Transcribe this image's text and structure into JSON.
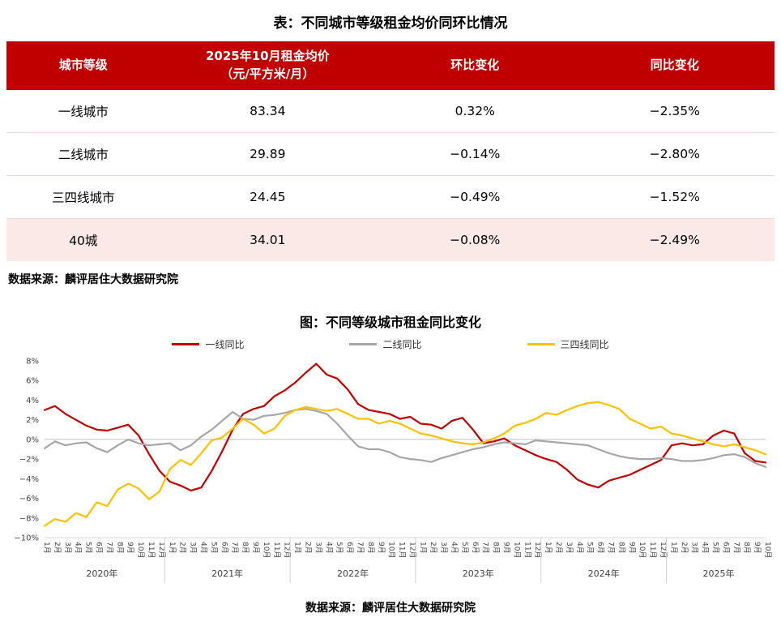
{
  "table": {
    "title": "表：不同城市等级租金均价同环比情况",
    "headers": [
      "城市等级",
      "2025年10月租金均价\n（元/平方米/月）",
      "环比变化",
      "同比变化"
    ],
    "rows": [
      [
        "一线城市",
        "83.34",
        "0.32%",
        "−2.35%"
      ],
      [
        "二线城市",
        "29.89",
        "−0.14%",
        "−2.80%"
      ],
      [
        "三四线城市",
        "24.45",
        "−0.49%",
        "−1.52%"
      ],
      [
        "40城",
        "34.01",
        "−0.08%",
        "−2.49%"
      ]
    ],
    "highlight_row_index": 3,
    "source": "数据来源：麟评居住大数据研究院"
  },
  "chart_source": "数据来源：麟评居住大数据研究院",
  "colors": {
    "accent_red": "#C00000",
    "highlight_row_bg": "#FBE9E7",
    "row_divider": "#F3D4D2",
    "gridline": "#BFBFBF",
    "axis_text": "#404040"
  },
  "chart_data": {
    "type": "line",
    "title": "图：不同等级城市租金同比变化",
    "legend_position": "top",
    "grid": "zero-line-only",
    "ylim": [
      -10,
      8
    ],
    "yticks": [
      8,
      6,
      4,
      2,
      0,
      -2,
      -4,
      -6,
      -8,
      -10
    ],
    "ytick_suffix": "%",
    "years": [
      {
        "label": "2020年",
        "months": 12
      },
      {
        "label": "2021年",
        "months": 12
      },
      {
        "label": "2022年",
        "months": 12
      },
      {
        "label": "2023年",
        "months": 12
      },
      {
        "label": "2024年",
        "months": 12
      },
      {
        "label": "2025年",
        "months": 10
      }
    ],
    "x_labels": [
      "1月",
      "2月",
      "3月",
      "4月",
      "5月",
      "6月",
      "7月",
      "8月",
      "9月",
      "10月",
      "11月",
      "12月",
      "1月",
      "2月",
      "3月",
      "4月",
      "5月",
      "6月",
      "7月",
      "8月",
      "9月",
      "10月",
      "11月",
      "12月",
      "1月",
      "2月",
      "3月",
      "4月",
      "5月",
      "6月",
      "7月",
      "8月",
      "9月",
      "10月",
      "11月",
      "12月",
      "1月",
      "2月",
      "3月",
      "4月",
      "5月",
      "6月",
      "7月",
      "8月",
      "9月",
      "10月",
      "11月",
      "12月",
      "1月",
      "2月",
      "3月",
      "4月",
      "5月",
      "6月",
      "7月",
      "8月",
      "9月",
      "10月",
      "11月",
      "12月",
      "1月",
      "2月",
      "3月",
      "4月",
      "5月",
      "6月",
      "7月",
      "8月",
      "9月",
      "10月"
    ],
    "series": [
      {
        "name": "一线同比",
        "color": "#C00000",
        "values": [
          3.0,
          3.4,
          2.6,
          2.0,
          1.4,
          1.0,
          0.9,
          1.2,
          1.5,
          0.4,
          -1.5,
          -3.2,
          -4.3,
          -4.7,
          -5.2,
          -4.9,
          -3.2,
          -1.2,
          1.0,
          2.6,
          3.1,
          3.4,
          4.4,
          5.0,
          5.8,
          6.8,
          7.7,
          6.6,
          6.2,
          5.1,
          3.6,
          3.0,
          2.8,
          2.6,
          2.1,
          2.3,
          1.6,
          1.5,
          1.1,
          1.9,
          2.2,
          1.0,
          -0.4,
          -0.2,
          0.1,
          -0.6,
          -1.1,
          -1.6,
          -2.0,
          -2.3,
          -3.1,
          -4.1,
          -4.6,
          -4.9,
          -4.2,
          -3.9,
          -3.6,
          -3.1,
          -2.6,
          -2.1,
          -0.6,
          -0.4,
          -0.6,
          -0.5,
          0.4,
          0.9,
          0.6,
          -1.4,
          -2.2,
          -2.35
        ]
      },
      {
        "name": "二线同比",
        "color": "#A6A6A6",
        "values": [
          -0.9,
          -0.2,
          -0.6,
          -0.4,
          -0.3,
          -0.9,
          -1.3,
          -0.6,
          0.0,
          -0.4,
          -0.6,
          -0.5,
          -0.4,
          -1.1,
          -0.6,
          0.3,
          1.0,
          1.9,
          2.8,
          2.1,
          2.0,
          2.4,
          2.5,
          2.7,
          3.0,
          3.1,
          2.9,
          2.6,
          1.6,
          0.4,
          -0.7,
          -1.0,
          -1.0,
          -1.3,
          -1.8,
          -2.0,
          -2.1,
          -2.3,
          -1.9,
          -1.6,
          -1.3,
          -1.0,
          -0.8,
          -0.5,
          -0.3,
          -0.4,
          -0.5,
          -0.1,
          -0.2,
          -0.3,
          -0.4,
          -0.5,
          -0.6,
          -1.0,
          -1.4,
          -1.7,
          -1.9,
          -2.0,
          -2.0,
          -1.9,
          -2.0,
          -2.2,
          -2.2,
          -2.1,
          -1.9,
          -1.6,
          -1.5,
          -1.8,
          -2.4,
          -2.8
        ]
      },
      {
        "name": "三四线同比",
        "color": "#FFC000",
        "values": [
          -8.8,
          -8.1,
          -8.4,
          -7.5,
          -7.9,
          -6.4,
          -6.8,
          -5.1,
          -4.5,
          -5.0,
          -6.1,
          -5.3,
          -3.0,
          -2.1,
          -2.6,
          -1.4,
          -0.1,
          0.2,
          1.1,
          2.1,
          1.5,
          0.6,
          1.1,
          2.4,
          3.0,
          3.3,
          3.1,
          2.9,
          3.1,
          2.6,
          2.1,
          2.1,
          1.6,
          1.9,
          1.6,
          1.1,
          0.6,
          0.4,
          0.1,
          -0.2,
          -0.4,
          -0.5,
          -0.3,
          0.1,
          0.6,
          1.4,
          1.7,
          2.1,
          2.7,
          2.5,
          3.0,
          3.4,
          3.7,
          3.8,
          3.5,
          3.1,
          2.1,
          1.6,
          1.1,
          1.3,
          0.6,
          0.4,
          0.1,
          -0.2,
          -0.5,
          -0.7,
          -0.5,
          -0.8,
          -1.1,
          -1.52
        ]
      }
    ]
  }
}
